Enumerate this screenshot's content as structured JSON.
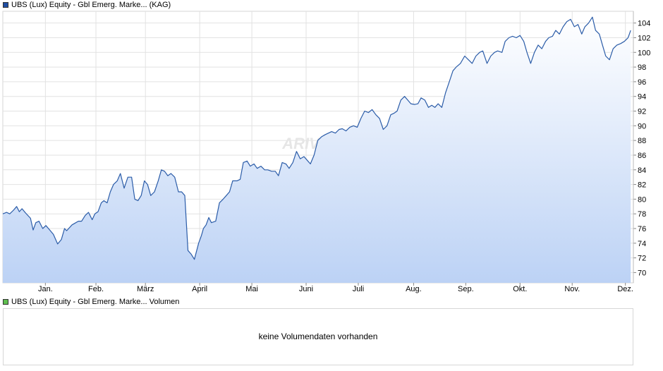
{
  "price_legend": {
    "label": "UBS (Lux) Equity - Gbl Emerg. Marke... (KAG)",
    "color": "#1f4ea3"
  },
  "volume_legend": {
    "label": "UBS (Lux) Equity - Gbl Emerg. Marke... Volumen",
    "color": "#5fbf4f"
  },
  "volume_panel": {
    "message": "keine Volumendaten vorhanden"
  },
  "watermark": {
    "text": "ARIVA.DE"
  },
  "chart_data": {
    "type": "area",
    "title": "",
    "xlabel": "",
    "ylabel": "",
    "ylim": [
      68.6,
      105.6
    ],
    "xlim": [
      -0.3,
      11.55
    ],
    "y_axis_side": "right",
    "grid": true,
    "line_color": "#2b5ca8",
    "fill_top_color": "#ffffff",
    "fill_bottom_color": "#bcd2f5",
    "y_ticks": [
      70,
      72,
      74,
      76,
      78,
      80,
      82,
      84,
      86,
      88,
      90,
      92,
      94,
      96,
      98,
      100,
      102,
      104
    ],
    "month_ticks": [
      {
        "label": "Jan.",
        "x": 0.5
      },
      {
        "label": "Feb.",
        "x": 1.45
      },
      {
        "label": "März",
        "x": 2.38
      },
      {
        "label": "April",
        "x": 3.4
      },
      {
        "label": "Mai",
        "x": 4.38
      },
      {
        "label": "Juni",
        "x": 5.4
      },
      {
        "label": "Juli",
        "x": 6.38
      },
      {
        "label": "Aug.",
        "x": 7.42
      },
      {
        "label": "Sep.",
        "x": 8.4
      },
      {
        "label": "Okt.",
        "x": 9.42
      },
      {
        "label": "Nov.",
        "x": 10.4
      },
      {
        "label": "Dez.",
        "x": 11.4
      }
    ],
    "series": [
      {
        "x": [
          -0.3,
          -0.23,
          -0.17,
          -0.1,
          -0.04,
          0.01,
          0.06,
          0.13,
          0.22,
          0.27,
          0.32,
          0.38,
          0.45,
          0.51,
          0.57,
          0.65,
          0.73,
          0.8,
          0.86,
          0.9,
          1.0,
          1.05,
          1.12,
          1.18,
          1.25,
          1.31,
          1.38,
          1.43,
          1.49,
          1.55,
          1.6,
          1.66,
          1.72,
          1.78,
          1.85,
          1.91,
          1.98,
          2.05,
          2.12,
          2.18,
          2.24,
          2.3,
          2.36,
          2.42,
          2.48,
          2.55,
          2.62,
          2.68,
          2.74,
          2.8,
          2.86,
          2.93,
          3.0,
          3.06,
          3.12,
          3.18,
          3.24,
          3.3,
          3.38,
          3.43,
          3.47,
          3.52,
          3.57,
          3.62,
          3.7,
          3.77,
          3.84,
          3.9,
          3.96,
          4.02,
          4.1,
          4.16,
          4.22,
          4.29,
          4.35,
          4.42,
          4.48,
          4.55,
          4.62,
          4.68,
          4.75,
          4.82,
          4.88,
          4.95,
          5.02,
          5.08,
          5.15,
          5.22,
          5.29,
          5.36,
          5.42,
          5.48,
          5.55,
          5.62,
          5.69,
          5.76,
          5.82,
          5.88,
          5.95,
          6.02,
          6.08,
          6.15,
          6.22,
          6.29,
          6.36,
          6.43,
          6.5,
          6.57,
          6.64,
          6.71,
          6.78,
          6.85,
          6.92,
          6.99,
          7.05,
          7.11,
          7.18,
          7.25,
          7.31,
          7.37,
          7.44,
          7.5,
          7.56,
          7.63,
          7.7,
          7.76,
          7.82,
          7.88,
          7.95,
          8.02,
          8.09,
          8.16,
          8.22,
          8.3,
          8.38,
          8.45,
          8.52,
          8.59,
          8.66,
          8.72,
          8.8,
          8.87,
          8.94,
          9.0,
          9.08,
          9.14,
          9.21,
          9.28,
          9.35,
          9.42,
          9.49,
          9.55,
          9.62,
          9.69,
          9.76,
          9.83,
          9.9,
          9.96,
          10.03,
          10.09,
          10.16,
          10.23,
          10.3,
          10.37,
          10.44,
          10.51,
          10.58,
          10.64,
          10.71,
          10.78,
          10.84,
          10.91,
          10.97,
          11.03,
          11.1,
          11.17,
          11.24,
          11.31,
          11.38,
          11.45,
          11.5
        ],
        "values": [
          78.0,
          78.2,
          78.0,
          78.5,
          79.0,
          78.3,
          78.7,
          78.1,
          77.4,
          75.8,
          76.8,
          77.0,
          76.0,
          76.4,
          75.9,
          75.2,
          73.9,
          74.5,
          76.0,
          75.7,
          76.5,
          76.7,
          77.0,
          77.0,
          77.8,
          78.2,
          77.2,
          78.0,
          78.3,
          79.5,
          79.8,
          79.5,
          81.0,
          82.0,
          82.5,
          83.5,
          81.5,
          83.0,
          83.0,
          80.0,
          79.8,
          80.5,
          82.5,
          82.0,
          80.5,
          81.0,
          82.5,
          84.0,
          83.8,
          83.2,
          83.5,
          83.0,
          81.0,
          81.0,
          80.5,
          73.0,
          72.5,
          71.8,
          74.0,
          75.0,
          76.0,
          76.5,
          77.5,
          76.8,
          77.0,
          79.5,
          80.0,
          80.5,
          81.0,
          82.5,
          82.5,
          82.7,
          85.0,
          85.2,
          84.5,
          84.8,
          84.2,
          84.5,
          84.0,
          84.0,
          83.8,
          83.8,
          83.2,
          85.0,
          84.8,
          84.2,
          85.0,
          86.5,
          85.5,
          85.8,
          85.3,
          84.8,
          86.0,
          88.0,
          88.5,
          88.8,
          89.0,
          89.2,
          89.0,
          89.5,
          89.6,
          89.3,
          89.8,
          90.0,
          89.8,
          91.0,
          92.0,
          91.8,
          92.2,
          91.5,
          91.0,
          89.5,
          90.0,
          91.5,
          91.7,
          92.0,
          93.5,
          94.0,
          93.5,
          93.0,
          92.9,
          93.0,
          93.8,
          93.5,
          92.5,
          92.8,
          92.5,
          93.0,
          92.5,
          94.5,
          96.0,
          97.5,
          98.0,
          98.5,
          99.5,
          99.0,
          98.5,
          99.5,
          100.0,
          100.2,
          98.5,
          99.5,
          100.0,
          100.2,
          100.0,
          101.5,
          102.0,
          102.2,
          102.0,
          102.3,
          101.5,
          100.0,
          98.5,
          100.0,
          101.0,
          100.5,
          101.5,
          102.0,
          102.2,
          103.0,
          102.5,
          103.5,
          104.2,
          104.5,
          103.5,
          103.8,
          102.5,
          103.5,
          104.0,
          104.8,
          103.0,
          102.5,
          101.0,
          99.5,
          99.0,
          100.5,
          101.0,
          101.2,
          101.5,
          102.0,
          103.0
        ]
      }
    ]
  }
}
